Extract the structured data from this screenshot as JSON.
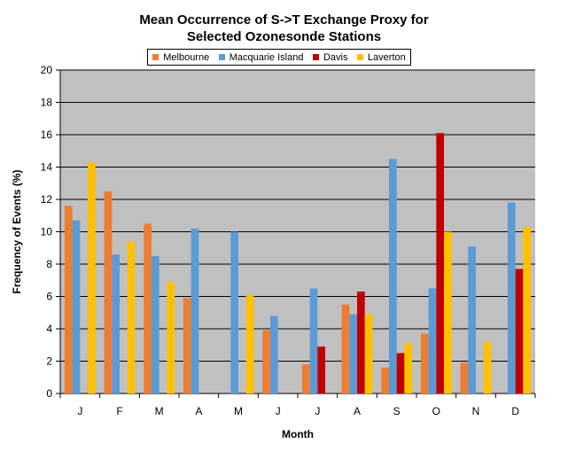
{
  "chart_data": {
    "type": "bar",
    "title": "Mean Occurrence of S->T Exchange Proxy for",
    "subtitle": "Selected Ozonesonde Stations",
    "xlabel": "Month",
    "ylabel": "Frequency of Events (%)",
    "ylim": [
      0,
      20
    ],
    "yticks": [
      0,
      2,
      4,
      6,
      8,
      10,
      12,
      14,
      16,
      18,
      20
    ],
    "grid": true,
    "legend_position": "top",
    "categories": [
      "J",
      "F",
      "M",
      "A",
      "M",
      "J",
      "J",
      "A",
      "S",
      "O",
      "N",
      "D"
    ],
    "series": [
      {
        "name": "Melbourne",
        "color": "#ED7D31",
        "values": [
          11.6,
          12.5,
          10.5,
          5.9,
          null,
          3.9,
          1.8,
          5.5,
          1.6,
          3.7,
          1.9,
          null
        ]
      },
      {
        "name": "Macquarie Island",
        "color": "#5B9BD5",
        "values": [
          10.7,
          8.6,
          8.5,
          10.2,
          10.0,
          4.8,
          6.5,
          4.9,
          14.5,
          6.5,
          9.1,
          11.8
        ]
      },
      {
        "name": "Davis",
        "color": "#C00000",
        "values": [
          null,
          null,
          null,
          null,
          null,
          null,
          2.9,
          6.3,
          2.5,
          16.1,
          null,
          7.7
        ]
      },
      {
        "name": "Laverton",
        "color": "#FFC000",
        "values": [
          14.3,
          9.4,
          6.9,
          null,
          6.1,
          null,
          null,
          4.9,
          3.1,
          10.0,
          3.2,
          10.3
        ]
      }
    ]
  }
}
